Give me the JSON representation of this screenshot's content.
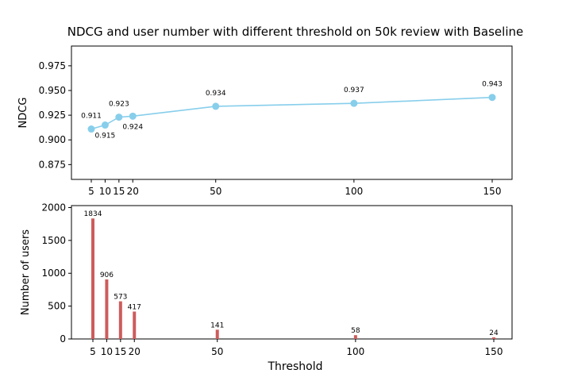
{
  "chart_data": [
    {
      "type": "line",
      "title": "NDCG and user number with different threshold  on 50k review with Baseline",
      "xlabel": "",
      "ylabel": "NDCG",
      "x": [
        5,
        10,
        15,
        20,
        50,
        100,
        150
      ],
      "x_ticks": [
        "5",
        "10",
        "15",
        "20",
        "50",
        "100",
        "150"
      ],
      "y": [
        0.911,
        0.915,
        0.923,
        0.924,
        0.934,
        0.937,
        0.943
      ],
      "data_labels": [
        "0.911",
        "0.915",
        "0.923",
        "0.924",
        "0.934",
        "0.937",
        "0.943"
      ],
      "ylim": [
        0.86,
        0.995
      ],
      "y_ticks": [
        "0.875",
        "0.900",
        "0.925",
        "0.950",
        "0.975"
      ],
      "color": "#87CEEB",
      "grid": false
    },
    {
      "type": "bar",
      "xlabel": "Threshold",
      "ylabel": "Number of users",
      "x": [
        5,
        10,
        15,
        20,
        50,
        100,
        150
      ],
      "x_ticks": [
        "5",
        "10",
        "15",
        "20",
        "50",
        "100",
        "150"
      ],
      "values": [
        1834,
        906,
        573,
        417,
        141,
        58,
        24
      ],
      "data_labels": [
        "1834",
        "906",
        "573",
        "417",
        "141",
        "58",
        "24"
      ],
      "ylim": [
        0,
        2030
      ],
      "y_ticks": [
        "0",
        "500",
        "1000",
        "1500",
        "2000"
      ],
      "color": "#CD5C5C",
      "grid": false
    }
  ]
}
